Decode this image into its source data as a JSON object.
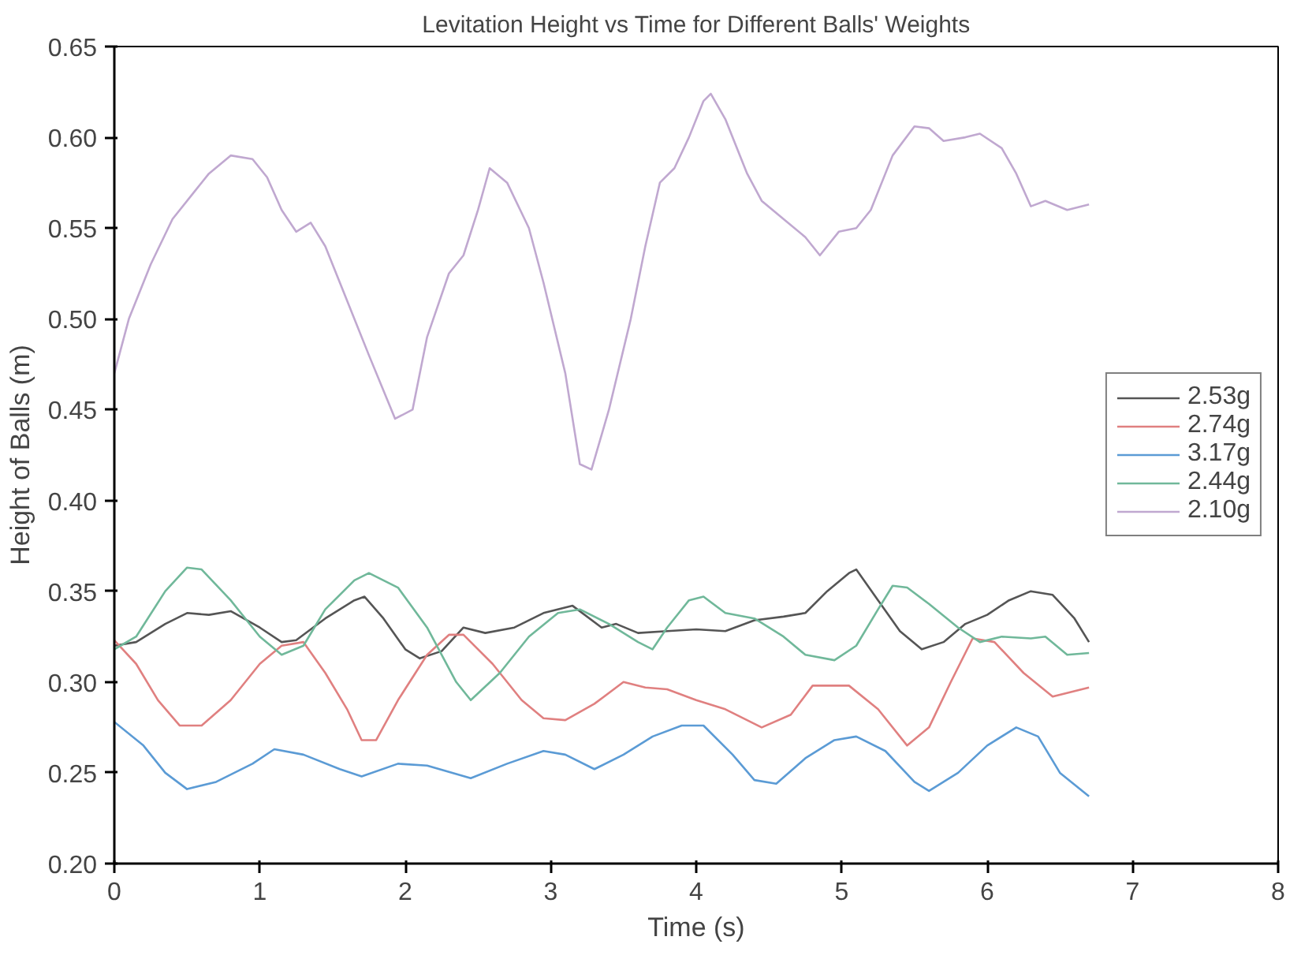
{
  "chart_data": {
    "type": "line",
    "title": "Levitation Height vs Time for Different Balls' Weights",
    "xlabel": "Time (s)",
    "ylabel": "Height of Balls (m)",
    "xlim": [
      0,
      8
    ],
    "xticks": [
      0,
      1,
      2,
      3,
      4,
      5,
      6,
      7,
      8
    ],
    "ylim": [
      0.2,
      0.65
    ],
    "yticks": [
      {
        "value": 0.2,
        "label": "0.20"
      },
      {
        "value": 0.25,
        "label": "0.25"
      },
      {
        "value": 0.3,
        "label": "0.30"
      },
      {
        "value": 0.35,
        "label": "0.35"
      },
      {
        "value": 0.4,
        "label": "0.40"
      },
      {
        "value": 0.45,
        "label": "0.45"
      },
      {
        "value": 0.5,
        "label": "0.50"
      },
      {
        "value": 0.55,
        "label": "0.55"
      },
      {
        "value": 0.6,
        "label": "0.60"
      },
      {
        "value": 0.65,
        "label": "0.65"
      }
    ],
    "grid": false,
    "legend": "right",
    "marker": "none",
    "line_style": "solid",
    "series": [
      {
        "name": "2.53g",
        "color": "#555555",
        "x": [
          0,
          0.15,
          0.35,
          0.5,
          0.65,
          0.8,
          1.0,
          1.15,
          1.25,
          1.45,
          1.65,
          1.72,
          1.85,
          2.0,
          2.1,
          2.25,
          2.4,
          2.55,
          2.75,
          2.95,
          3.15,
          3.35,
          3.45,
          3.6,
          3.8,
          4.0,
          4.2,
          4.4,
          4.6,
          4.75,
          4.9,
          5.05,
          5.1,
          5.25,
          5.4,
          5.55,
          5.7,
          5.85,
          6.0,
          6.15,
          6.3,
          6.45,
          6.6,
          6.7
        ],
        "values": [
          0.32,
          0.322,
          0.332,
          0.338,
          0.337,
          0.339,
          0.33,
          0.322,
          0.323,
          0.335,
          0.345,
          0.347,
          0.335,
          0.318,
          0.313,
          0.317,
          0.33,
          0.327,
          0.33,
          0.338,
          0.342,
          0.33,
          0.332,
          0.327,
          0.328,
          0.329,
          0.328,
          0.334,
          0.336,
          0.338,
          0.35,
          0.36,
          0.362,
          0.345,
          0.328,
          0.318,
          0.322,
          0.332,
          0.337,
          0.345,
          0.35,
          0.348,
          0.335,
          0.322
        ]
      },
      {
        "name": "2.74g",
        "color": "#e08080",
        "x": [
          0,
          0.15,
          0.3,
          0.45,
          0.6,
          0.8,
          1.0,
          1.15,
          1.3,
          1.45,
          1.6,
          1.7,
          1.8,
          1.95,
          2.15,
          2.3,
          2.4,
          2.6,
          2.8,
          2.95,
          3.1,
          3.3,
          3.5,
          3.65,
          3.8,
          4.0,
          4.2,
          4.45,
          4.65,
          4.8,
          5.05,
          5.25,
          5.45,
          5.6,
          5.75,
          5.9,
          6.05,
          6.25,
          6.45,
          6.7
        ],
        "values": [
          0.323,
          0.31,
          0.29,
          0.276,
          0.276,
          0.29,
          0.31,
          0.32,
          0.322,
          0.305,
          0.285,
          0.268,
          0.268,
          0.29,
          0.315,
          0.326,
          0.326,
          0.31,
          0.29,
          0.28,
          0.279,
          0.288,
          0.3,
          0.297,
          0.296,
          0.29,
          0.285,
          0.275,
          0.282,
          0.298,
          0.298,
          0.285,
          0.265,
          0.275,
          0.3,
          0.324,
          0.322,
          0.305,
          0.292,
          0.297
        ]
      },
      {
        "name": "3.17g",
        "color": "#5b9bd5",
        "x": [
          0,
          0.2,
          0.35,
          0.5,
          0.7,
          0.95,
          1.1,
          1.3,
          1.55,
          1.7,
          1.95,
          2.15,
          2.45,
          2.7,
          2.95,
          3.1,
          3.3,
          3.5,
          3.7,
          3.9,
          4.05,
          4.25,
          4.4,
          4.55,
          4.75,
          4.95,
          5.1,
          5.3,
          5.5,
          5.6,
          5.8,
          6.0,
          6.2,
          6.35,
          6.5,
          6.7
        ],
        "values": [
          0.278,
          0.265,
          0.25,
          0.241,
          0.245,
          0.255,
          0.263,
          0.26,
          0.252,
          0.248,
          0.255,
          0.254,
          0.247,
          0.255,
          0.262,
          0.26,
          0.252,
          0.26,
          0.27,
          0.276,
          0.276,
          0.26,
          0.246,
          0.244,
          0.258,
          0.268,
          0.27,
          0.262,
          0.245,
          0.24,
          0.25,
          0.265,
          0.275,
          0.27,
          0.25,
          0.237
        ]
      },
      {
        "name": "2.44g",
        "color": "#70b89a",
        "x": [
          0,
          0.15,
          0.35,
          0.5,
          0.6,
          0.8,
          1.0,
          1.15,
          1.3,
          1.45,
          1.65,
          1.75,
          1.95,
          2.15,
          2.35,
          2.45,
          2.65,
          2.85,
          3.05,
          3.2,
          3.4,
          3.6,
          3.7,
          3.8,
          3.95,
          4.05,
          4.2,
          4.4,
          4.6,
          4.75,
          4.95,
          5.1,
          5.25,
          5.35,
          5.45,
          5.6,
          5.8,
          5.95,
          6.1,
          6.3,
          6.4,
          6.55,
          6.7
        ],
        "values": [
          0.318,
          0.325,
          0.35,
          0.363,
          0.362,
          0.345,
          0.325,
          0.315,
          0.32,
          0.34,
          0.356,
          0.36,
          0.352,
          0.33,
          0.3,
          0.29,
          0.305,
          0.325,
          0.338,
          0.34,
          0.332,
          0.322,
          0.318,
          0.33,
          0.345,
          0.347,
          0.338,
          0.335,
          0.325,
          0.315,
          0.312,
          0.32,
          0.34,
          0.353,
          0.352,
          0.343,
          0.33,
          0.322,
          0.325,
          0.324,
          0.325,
          0.315,
          0.316
        ]
      },
      {
        "name": "2.10g",
        "color": "#c0a8d0",
        "x": [
          0,
          0.1,
          0.25,
          0.4,
          0.55,
          0.65,
          0.8,
          0.95,
          1.05,
          1.15,
          1.25,
          1.35,
          1.45,
          1.6,
          1.75,
          1.93,
          2.05,
          2.15,
          2.3,
          2.4,
          2.5,
          2.58,
          2.7,
          2.85,
          2.95,
          3.1,
          3.2,
          3.28,
          3.4,
          3.55,
          3.65,
          3.75,
          3.85,
          3.95,
          4.05,
          4.1,
          4.2,
          4.35,
          4.45,
          4.6,
          4.75,
          4.85,
          4.98,
          5.1,
          5.2,
          5.35,
          5.5,
          5.6,
          5.7,
          5.85,
          5.95,
          6.1,
          6.2,
          6.3,
          6.4,
          6.55,
          6.7
        ],
        "values": [
          0.47,
          0.5,
          0.53,
          0.555,
          0.57,
          0.58,
          0.59,
          0.588,
          0.578,
          0.56,
          0.548,
          0.553,
          0.54,
          0.51,
          0.48,
          0.445,
          0.45,
          0.49,
          0.525,
          0.535,
          0.56,
          0.583,
          0.575,
          0.55,
          0.52,
          0.47,
          0.42,
          0.417,
          0.45,
          0.5,
          0.54,
          0.575,
          0.583,
          0.6,
          0.62,
          0.624,
          0.61,
          0.58,
          0.565,
          0.555,
          0.545,
          0.535,
          0.548,
          0.55,
          0.56,
          0.59,
          0.606,
          0.605,
          0.598,
          0.6,
          0.602,
          0.594,
          0.58,
          0.562,
          0.565,
          0.56,
          0.563
        ]
      }
    ]
  }
}
